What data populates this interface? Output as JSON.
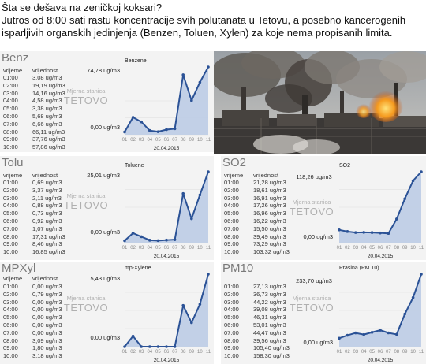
{
  "header": {
    "line1": "Šta se dešava na zeničkoj koksari?",
    "line2": "Jutros od 8:00 sati rastu koncentracije svih polutanata u Tetovu, a posebno kancerogenih",
    "line3": "isparljivih organskih jedinjenja (Benzen, Toluen, Xylen) za koje nema propisanih limita."
  },
  "common": {
    "col_time": "vrijeme",
    "col_value": "vrijednost",
    "station_line1": "Mjerna stanica",
    "station_line2": "TETOVO",
    "date": "20.04.2015",
    "x_ticks": [
      "01",
      "02",
      "03",
      "04",
      "05",
      "06",
      "07",
      "08",
      "09",
      "10",
      "11"
    ]
  },
  "colors": {
    "line": "#2b5296",
    "fill": "#bccce6",
    "panel": "#f3f3f3"
  },
  "panels": [
    {
      "title": "Benz",
      "chart_title": "Benzene",
      "max": "74,78 ug/m3",
      "min": "0,00 ug/m3",
      "rows": [
        [
          "01:00",
          "3,08 ug/m3"
        ],
        [
          "02:00",
          "19,19 ug/m3"
        ],
        [
          "03:00",
          "14,16 ug/m3"
        ],
        [
          "04:00",
          "4,58 ug/m3"
        ],
        [
          "05:00",
          "3,38 ug/m3"
        ],
        [
          "06:00",
          "5,68 ug/m3"
        ],
        [
          "07:00",
          "6,66 ug/m3"
        ],
        [
          "08:00",
          "66,11 ug/m3"
        ],
        [
          "09:00",
          "37,76 ug/m3"
        ],
        [
          "10:00",
          "57,86 ug/m3"
        ]
      ]
    },
    {
      "title": "Tolu",
      "chart_title": "Toluene",
      "max": "25,01 ug/m3",
      "min": "0,00 ug/m3",
      "rows": [
        [
          "01:00",
          "0,69 ug/m3"
        ],
        [
          "02:00",
          "3,37 ug/m3"
        ],
        [
          "03:00",
          "2,11 ug/m3"
        ],
        [
          "04:00",
          "0,88 ug/m3"
        ],
        [
          "05:00",
          "0,73 ug/m3"
        ],
        [
          "06:00",
          "0,92 ug/m3"
        ],
        [
          "07:00",
          "1,07 ug/m3"
        ],
        [
          "08:00",
          "17,31 ug/m3"
        ],
        [
          "09:00",
          "8,46 ug/m3"
        ],
        [
          "10:00",
          "16,85 ug/m3"
        ]
      ]
    },
    {
      "title": "SO2",
      "chart_title": "SO2",
      "max": "118,26 ug/m3",
      "min": "0,00 ug/m3",
      "rows": [
        [
          "01:00",
          "21,28 ug/m3"
        ],
        [
          "02:00",
          "18,61 ug/m3"
        ],
        [
          "03:00",
          "16,91 ug/m3"
        ],
        [
          "04:00",
          "17,26 ug/m3"
        ],
        [
          "05:00",
          "16,96 ug/m3"
        ],
        [
          "06:00",
          "16,22 ug/m3"
        ],
        [
          "07:00",
          "15,50 ug/m3"
        ],
        [
          "08:00",
          "39,49 ug/m3"
        ],
        [
          "09:00",
          "73,29 ug/m3"
        ],
        [
          "10:00",
          "103,32 ug/m3"
        ]
      ]
    },
    {
      "title": "MPXyl",
      "chart_title": "mp-Xylene",
      "max": "5,43 ug/m3",
      "min": "0,00 ug/m3",
      "rows": [
        [
          "01:00",
          "0,00 ug/m3"
        ],
        [
          "02:00",
          "0,79 ug/m3"
        ],
        [
          "03:00",
          "0,00 ug/m3"
        ],
        [
          "04:00",
          "0,00 ug/m3"
        ],
        [
          "05:00",
          "0,00 ug/m3"
        ],
        [
          "06:00",
          "0,00 ug/m3"
        ],
        [
          "07:00",
          "0,00 ug/m3"
        ],
        [
          "08:00",
          "3,09 ug/m3"
        ],
        [
          "09:00",
          "1,80 ug/m3"
        ],
        [
          "10:00",
          "3,18 ug/m3"
        ]
      ]
    },
    {
      "title": "PM10",
      "chart_title": "Prasina (PM 10)",
      "max": "233,70 ug/m3",
      "min": "0,00 ug/m3",
      "rows": [
        [
          "01:00",
          "27,13 ug/m3"
        ],
        [
          "02:00",
          "36,73 ug/m3"
        ],
        [
          "03:00",
          "44,22 ug/m3"
        ],
        [
          "04:00",
          "39,08 ug/m3"
        ],
        [
          "05:00",
          "46,31 ug/m3"
        ],
        [
          "06:00",
          "53,01 ug/m3"
        ],
        [
          "07:00",
          "44,47 ug/m3"
        ],
        [
          "08:00",
          "39,56 ug/m3"
        ],
        [
          "09:00",
          "105,40 ug/m3"
        ],
        [
          "10:00",
          "158,30 ug/m3"
        ]
      ]
    }
  ],
  "chart_data": [
    {
      "type": "area",
      "title": "Benzene",
      "x": [
        "01",
        "02",
        "03",
        "04",
        "05",
        "06",
        "07",
        "08",
        "09",
        "10",
        "11"
      ],
      "values": [
        3.08,
        19.19,
        14.16,
        4.58,
        3.38,
        5.68,
        6.66,
        66.11,
        37.76,
        57.86,
        74.78
      ],
      "ylim": [
        0,
        74.78
      ]
    },
    {
      "type": "area",
      "title": "Toluene",
      "x": [
        "01",
        "02",
        "03",
        "04",
        "05",
        "06",
        "07",
        "08",
        "09",
        "10",
        "11"
      ],
      "values": [
        0.69,
        3.37,
        2.11,
        0.88,
        0.73,
        0.92,
        1.07,
        17.31,
        8.46,
        16.85,
        25.01
      ],
      "ylim": [
        0,
        25.01
      ]
    },
    {
      "type": "area",
      "title": "SO2",
      "x": [
        "01",
        "02",
        "03",
        "04",
        "05",
        "06",
        "07",
        "08",
        "09",
        "10",
        "11"
      ],
      "values": [
        21.28,
        18.61,
        16.91,
        17.26,
        16.96,
        16.22,
        15.5,
        39.49,
        73.29,
        103.32,
        118.26
      ],
      "ylim": [
        0,
        118.26
      ]
    },
    {
      "type": "area",
      "title": "mp-Xylene",
      "x": [
        "01",
        "02",
        "03",
        "04",
        "05",
        "06",
        "07",
        "08",
        "09",
        "10",
        "11"
      ],
      "values": [
        0.0,
        0.79,
        0.0,
        0.0,
        0.0,
        0.0,
        0.0,
        3.09,
        1.8,
        3.18,
        5.43
      ],
      "ylim": [
        0,
        5.43
      ]
    },
    {
      "type": "area",
      "title": "Prasina (PM 10)",
      "x": [
        "01",
        "02",
        "03",
        "04",
        "05",
        "06",
        "07",
        "08",
        "09",
        "10",
        "11"
      ],
      "values": [
        27.13,
        36.73,
        44.22,
        39.08,
        46.31,
        53.01,
        44.47,
        39.56,
        105.4,
        158.3,
        233.7
      ],
      "ylim": [
        0,
        233.7
      ]
    }
  ]
}
